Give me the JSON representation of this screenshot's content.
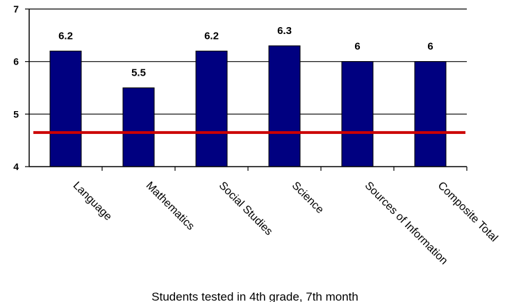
{
  "chart_data": {
    "type": "bar",
    "categories": [
      "Language",
      "Mathematics",
      "Social Studies",
      "Science",
      "Sources of Information",
      "Composite Total"
    ],
    "values": [
      6.2,
      5.5,
      6.2,
      6.3,
      6,
      6
    ],
    "data_labels": [
      "6.2",
      "5.5",
      "6.2",
      "6.3",
      "6",
      "6"
    ],
    "ylim": [
      4,
      7
    ],
    "yticks": [
      4,
      5,
      6,
      7
    ],
    "ytick_labels": [
      "4",
      "5",
      "6",
      "7"
    ],
    "xlabel": "Students tested in 4th grade, 7th month",
    "ylabel": "",
    "title": "",
    "grid": true,
    "reference_line": {
      "value": 4.65
    },
    "colors": {
      "bar": "#000080",
      "bar_edge": "#000000",
      "reference_line": "#cc0000",
      "grid": "#000000"
    }
  }
}
